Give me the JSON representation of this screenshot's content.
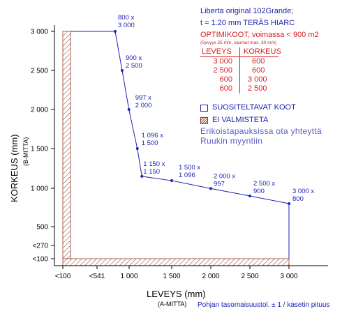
{
  "chart_data": {
    "type": "line",
    "xlabel": "LEVEYS (mm)",
    "xlabel_sub": "(A-MITTA)",
    "ylabel": "KORKEUS (mm)",
    "ylabel_sub": "(B-MITTA)",
    "x_ticks": [
      {
        "value": 0,
        "label": "<100"
      },
      {
        "value": 541,
        "label": "<541"
      },
      {
        "value": 1000,
        "label": "1 000"
      },
      {
        "value": 1500,
        "label": "1 500"
      },
      {
        "value": 2000,
        "label": "2 000"
      },
      {
        "value": 2500,
        "label": "2 500"
      },
      {
        "value": 3000,
        "label": "3 000"
      }
    ],
    "y_ticks": [
      {
        "value": 0,
        "label": "<100"
      },
      {
        "value": 270,
        "label": "<270"
      },
      {
        "value": 500,
        "label": "500"
      },
      {
        "value": 1000,
        "label": "1 000"
      },
      {
        "value": 1500,
        "label": "1 500"
      },
      {
        "value": 2000,
        "label": "2 000"
      },
      {
        "value": 2500,
        "label": "2 500"
      },
      {
        "value": 3000,
        "label": "3 000"
      }
    ],
    "xlim": [
      0,
      3000
    ],
    "ylim": [
      0,
      3000
    ],
    "series": [
      {
        "color": "#1e22b4",
        "points": [
          {
            "x": 800,
            "y": 3000,
            "label": [
              "800 x",
              "3 000"
            ]
          },
          {
            "x": 900,
            "y": 2500,
            "label": [
              "900 x",
              "2 500"
            ]
          },
          {
            "x": 997,
            "y": 2000,
            "label": [
              "997 x",
              "2 000"
            ]
          },
          {
            "x": 1096,
            "y": 1500,
            "label": [
              "1 096 x",
              "1 500"
            ]
          },
          {
            "x": 1150,
            "y": 1150,
            "label": [
              "1 150 x",
              "1 150"
            ]
          },
          {
            "x": 1500,
            "y": 1096,
            "label": [
              "1 500 x",
              "1 096"
            ]
          },
          {
            "x": 2000,
            "y": 997,
            "label": [
              "2 000 x",
              "997"
            ]
          },
          {
            "x": 2500,
            "y": 900,
            "label": [
              "2 500 x",
              "900"
            ]
          },
          {
            "x": 3000,
            "y": 800,
            "label": [
              "3 000 x",
              "800"
            ]
          }
        ]
      }
    ],
    "grid": false
  },
  "info": {
    "title_line1": "Liberta original 102Grande;",
    "title_line2": "t = 1.20 mm TERÄS HIARC",
    "optimi_title": "OPTIMIKOOT, voimassa < 900 m2",
    "optimi_note": "(Syvyys 25 mm, saumat max. 30 mm)",
    "col1_header": "LEVEYS",
    "col2_header": "KORKEUS",
    "rows": [
      [
        "3 000",
        "600"
      ],
      [
        "2 500",
        "600"
      ],
      [
        "600",
        "3 000"
      ],
      [
        "600",
        "2 500"
      ]
    ],
    "legend_recommended": "SUOSITELTAVAT KOOT",
    "legend_not_made": "EI VALMISTETA",
    "contact_line1": "Erikoistapauksissa ota yhteyttä",
    "contact_line2": "Ruukin myyntiin",
    "footer": "Pohjan tasomaisuustol. ± 1 / kasetin pituus"
  },
  "colors": {
    "blue": "#1e22b4",
    "red": "#d42020",
    "hatch": "#a0523a"
  }
}
